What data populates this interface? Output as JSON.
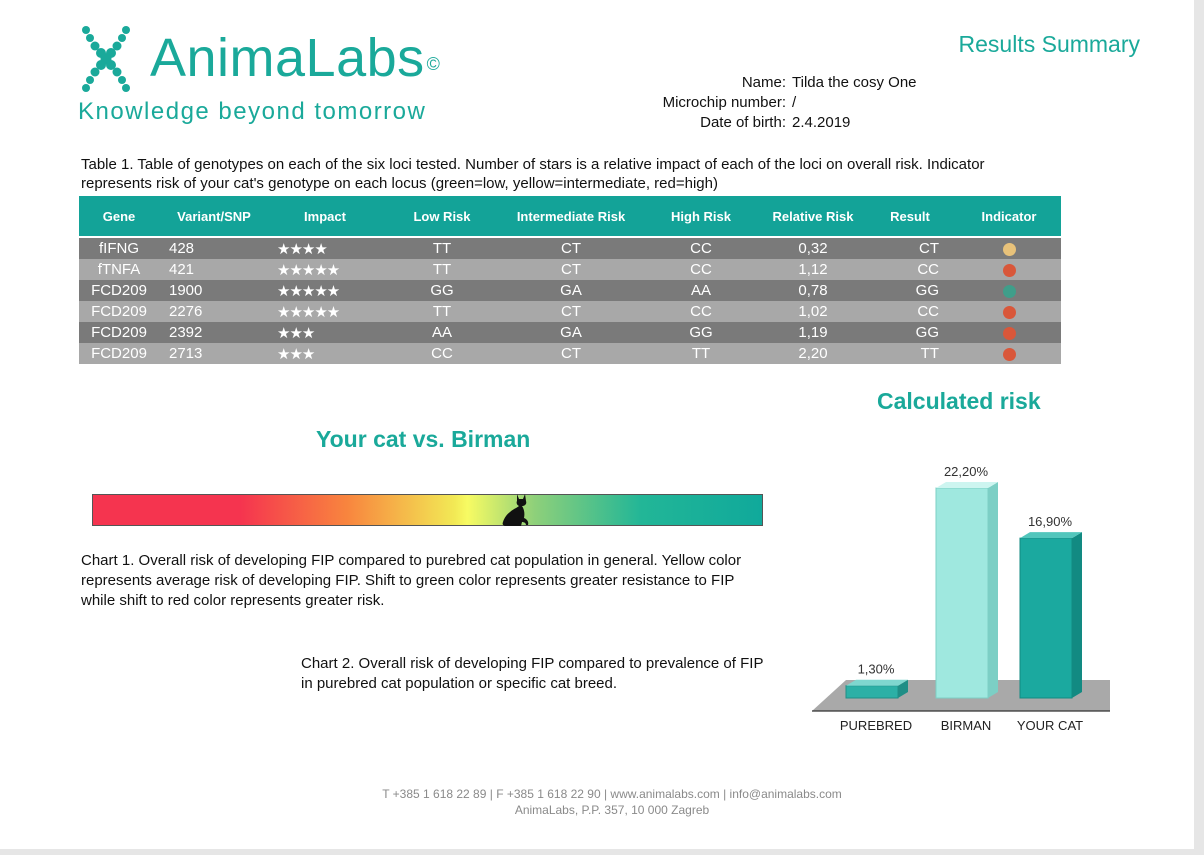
{
  "header": {
    "brand": "AnimaLabs",
    "brand_mark": "©",
    "tagline": "Knowledge beyond tomorrow",
    "results_title": "Results Summary"
  },
  "info": {
    "name_label": "Name:",
    "name_value": "Tilda the cosy One",
    "microchip_label": "Microchip number:",
    "microchip_value": "/",
    "dob_label": "Date of birth:",
    "dob_value": "2.4.2019"
  },
  "table": {
    "caption_line1": "Table 1. Table of genotypes on each of the six loci tested. Number of stars is a relative impact of each of the loci on overall risk. Indicator",
    "caption_line2": "represents risk of your cat's genotype on each locus (green=low, yellow=intermediate, red=high)",
    "headers": [
      "Gene",
      "Variant/SNP",
      "Impact",
      "Low Risk",
      "Intermediate Risk",
      "High Risk",
      "Relative Risk",
      "Result",
      "Indicator"
    ],
    "rows": [
      {
        "gene": "fIFNG",
        "variant": "428",
        "stars": "★★★★",
        "low": "TT",
        "mid": "CT",
        "high": "CC",
        "rr": "0,32",
        "result": "CT",
        "indicator": "yellow"
      },
      {
        "gene": "fTNFA",
        "variant": "421",
        "stars": "★★★★★",
        "low": "TT",
        "mid": "CT",
        "high": "CC",
        "rr": "1,12",
        "result": "CC",
        "indicator": "red"
      },
      {
        "gene": "FCD209",
        "variant": "1900",
        "stars": "★★★★★",
        "low": "GG",
        "mid": "GA",
        "high": "AA",
        "rr": "0,78",
        "result": "GG",
        "indicator": "green"
      },
      {
        "gene": "FCD209",
        "variant": "2276",
        "stars": "★★★★★",
        "low": "TT",
        "mid": "CT",
        "high": "CC",
        "rr": "1,02",
        "result": "CC",
        "indicator": "red"
      },
      {
        "gene": "FCD209",
        "variant": "2392",
        "stars": "★★★",
        "low": "AA",
        "mid": "GA",
        "high": "GG",
        "rr": "1,19",
        "result": "GG",
        "indicator": "red"
      },
      {
        "gene": "FCD209",
        "variant": "2713",
        "stars": "★★★",
        "low": "CC",
        "mid": "CT",
        "high": "TT",
        "rr": "2,20",
        "result": "TT",
        "indicator": "red"
      }
    ],
    "indicator_colors": {
      "yellow": "#e8c27a",
      "red": "#d9573a",
      "green": "#3f9e8a"
    }
  },
  "chart1": {
    "title": "Your cat vs. Birman",
    "cat_position": 0.63,
    "cat_icon": "cat-silhouette-icon",
    "caption_line1": "Chart 1. Overall risk of developing FIP compared to purebred cat population in general. Yellow color",
    "caption_line2": "represents average risk of developing FIP. Shift to green color represents greater resistance to FIP",
    "caption_line3": "while shift to red color represents greater risk."
  },
  "chart2_caption": {
    "line1": "Chart 2. Overall risk of developing FIP compared to  prevalence of FIP",
    "line2": "in purebred cat population or specific cat breed."
  },
  "chart_data": {
    "type": "bar",
    "title": "Calculated risk",
    "categories": [
      "PUREBRED",
      "BIRMAN",
      "YOUR CAT"
    ],
    "values": [
      1.3,
      22.2,
      16.9
    ],
    "value_labels": [
      "1,30%",
      "22,20%",
      "16,90%"
    ],
    "ylim": [
      0,
      22.2
    ],
    "grid": false,
    "colors": {
      "purebred": "#2cb0a6",
      "birman": "#9fe8df",
      "your_cat": "#1ba99f"
    }
  },
  "footer": {
    "line1": "T +385 1 618 22 89  |  F +385 1 618 22 90  |  www.animalabs.com  |  info@animalabs.com",
    "line2": "AnimaLabs, P.P. 357, 10 000 Zagreb"
  },
  "accent": "#1aa99a"
}
